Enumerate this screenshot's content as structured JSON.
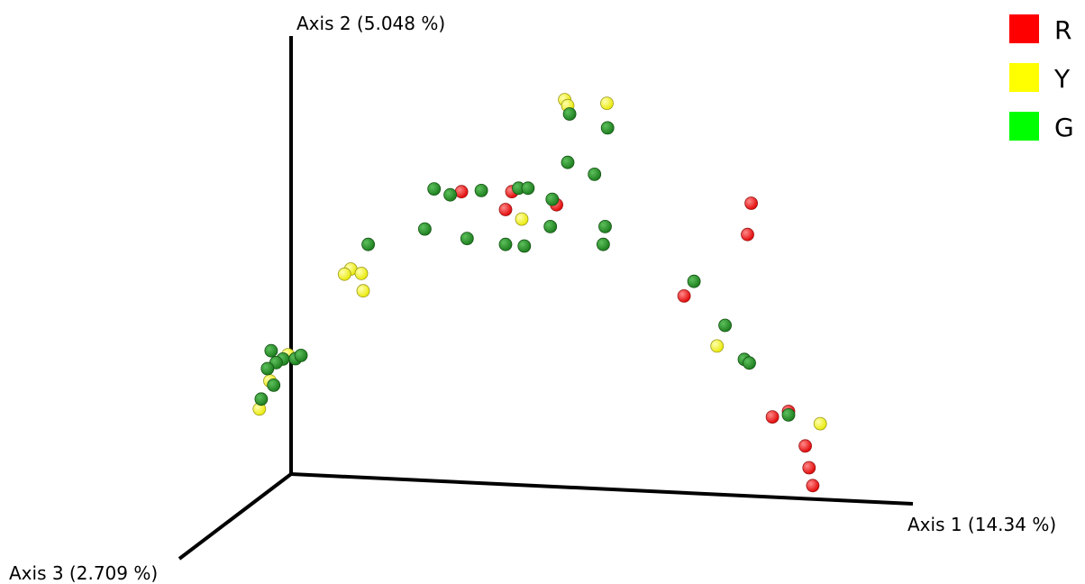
{
  "chart_data": {
    "type": "scatter",
    "projection": "3d",
    "axes": {
      "x": {
        "label": "Axis 1 (14.34 %)"
      },
      "y": {
        "label": "Axis 2 (5.048 %)"
      },
      "z": {
        "label": "Axis 3 (2.709 %)"
      }
    },
    "legend": {
      "placement": "top-right",
      "entries": [
        {
          "label": "R",
          "color": "#ff0000"
        },
        {
          "label": "Y",
          "color": "#ffff00"
        },
        {
          "label": "G",
          "color": "#00ff00"
        }
      ]
    },
    "grid": false,
    "series": [
      {
        "name": "R",
        "color": "#ff2a2a",
        "stroke": "#9a1a1a",
        "points": [
          [
            0.274,
            0.712
          ],
          [
            0.355,
            0.712
          ],
          [
            0.345,
            0.667
          ],
          [
            0.427,
            0.679
          ],
          [
            0.74,
            0.683
          ],
          [
            0.734,
            0.604
          ],
          [
            0.632,
            0.449
          ],
          [
            0.8,
            0.158
          ],
          [
            0.774,
            0.144
          ],
          [
            0.827,
            0.071
          ],
          [
            0.833,
            0.016
          ],
          [
            0.839,
            -0.029
          ]
        ]
      },
      {
        "name": "Y",
        "color": "#ffff22",
        "stroke": "#9a9a1a",
        "points": [
          [
            0.44,
            0.944
          ],
          [
            0.445,
            0.929
          ],
          [
            0.508,
            0.935
          ],
          [
            0.371,
            0.643
          ],
          [
            0.096,
            0.517
          ],
          [
            0.086,
            0.504
          ],
          [
            0.113,
            0.506
          ],
          [
            0.116,
            0.462
          ],
          [
            0.685,
            0.323
          ],
          [
            0.851,
            0.127
          ],
          [
            -0.005,
            0.301
          ],
          [
            -0.034,
            0.235
          ],
          [
            -0.051,
            0.164
          ]
        ]
      },
      {
        "name": "G",
        "color": "#2aa02a",
        "stroke": "#145214",
        "points": [
          [
            0.23,
            0.719
          ],
          [
            0.256,
            0.704
          ],
          [
            0.306,
            0.715
          ],
          [
            0.366,
            0.721
          ],
          [
            0.381,
            0.721
          ],
          [
            0.448,
            0.908
          ],
          [
            0.509,
            0.873
          ],
          [
            0.445,
            0.786
          ],
          [
            0.488,
            0.756
          ],
          [
            0.42,
            0.693
          ],
          [
            0.417,
            0.624
          ],
          [
            0.505,
            0.624
          ],
          [
            0.215,
            0.618
          ],
          [
            0.283,
            0.594
          ],
          [
            0.124,
            0.579
          ],
          [
            0.345,
            0.579
          ],
          [
            0.375,
            0.575
          ],
          [
            0.502,
            0.579
          ],
          [
            0.648,
            0.486
          ],
          [
            0.698,
            0.375
          ],
          [
            0.729,
            0.289
          ],
          [
            0.737,
            0.28
          ],
          [
            0.8,
            0.149
          ],
          [
            -0.032,
            0.311
          ],
          [
            -0.013,
            0.29
          ],
          [
            -0.024,
            0.281
          ],
          [
            0.007,
            0.291
          ],
          [
            0.016,
            0.299
          ],
          [
            -0.038,
            0.266
          ],
          [
            -0.028,
            0.224
          ],
          [
            -0.048,
            0.189
          ]
        ]
      }
    ]
  }
}
